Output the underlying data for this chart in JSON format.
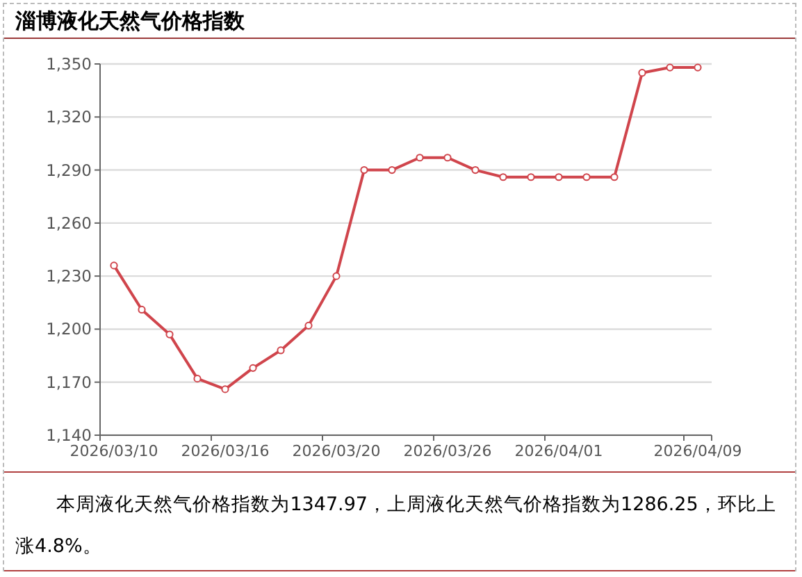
{
  "chart_data": {
    "type": "line",
    "title": "淄博液化天然气价格指数",
    "categories": [
      "2026/03/10",
      null,
      null,
      null,
      "2026/03/16",
      null,
      null,
      null,
      "2026/03/20",
      null,
      null,
      null,
      "2026/03/26",
      null,
      null,
      null,
      "2026/04/01",
      null,
      null,
      null,
      null,
      "2026/04/09"
    ],
    "series": [
      {
        "color": "#d0454c",
        "values": [
          1236,
          1211,
          1197,
          1172,
          1166,
          1178,
          1188,
          1202,
          1230,
          1290,
          1290,
          1297,
          1297,
          1290,
          1286,
          1286,
          1286,
          1286,
          1286,
          1345,
          1348,
          1348
        ]
      }
    ],
    "ylim": [
      1140,
      1350
    ],
    "yticks": [
      {
        "value": 1140,
        "label": "1,140"
      },
      {
        "value": 1170,
        "label": "1,170"
      },
      {
        "value": 1200,
        "label": "1,200"
      },
      {
        "value": 1230,
        "label": "1,230"
      },
      {
        "value": 1260,
        "label": "1,260"
      },
      {
        "value": 1290,
        "label": "1,290"
      },
      {
        "value": 1320,
        "label": "1,320"
      },
      {
        "value": 1350,
        "label": "1,350"
      }
    ],
    "grid": "y",
    "marker": "circle",
    "line_style": "solid",
    "annotations": [
      "本周液化天然气价格指数为1347.97，上周液化天然气价格指数为1286.25，环比上涨4.8%。"
    ]
  }
}
